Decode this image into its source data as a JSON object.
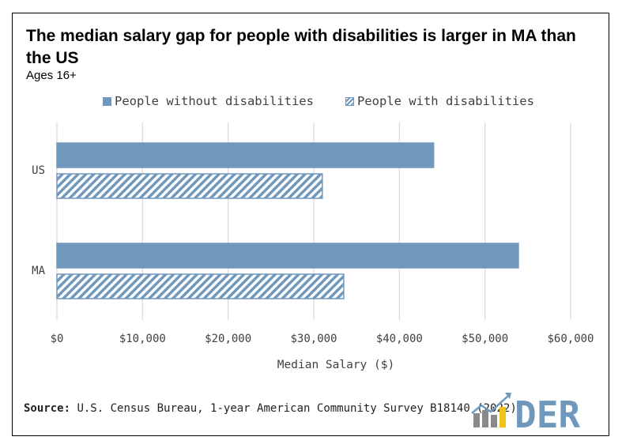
{
  "title": "The median salary gap for people with disabilities is larger in MA than the US",
  "subtitle": "Ages 16+",
  "source": {
    "label": "Source:",
    "text": "U.S. Census Bureau, 1-year American Community Survey B18140 (2022)"
  },
  "logo": {
    "text": "DER",
    "colors": {
      "blue": "#6f98bd",
      "gray": "#8a8a8a",
      "yellow": "#f2c31b"
    }
  },
  "chart_data": {
    "type": "bar",
    "orientation": "horizontal",
    "categories": [
      "US",
      "MA"
    ],
    "series": [
      {
        "name": "People without disabilities",
        "values": [
          44000,
          53900
        ],
        "color": "#7098bd",
        "pattern": "solid"
      },
      {
        "name": "People with disabilities",
        "values": [
          31000,
          33500
        ],
        "color": "#7098bd",
        "pattern": "diagonal-hatch"
      }
    ],
    "xlabel": "Median Salary ($)",
    "ylabel": "",
    "xlim": [
      0,
      60000
    ],
    "xticks": [
      "$0",
      "$10,000",
      "$20,000",
      "$30,000",
      "$40,000",
      "$50,000",
      "$60,000"
    ],
    "grid": "vertical",
    "legend": "top"
  }
}
